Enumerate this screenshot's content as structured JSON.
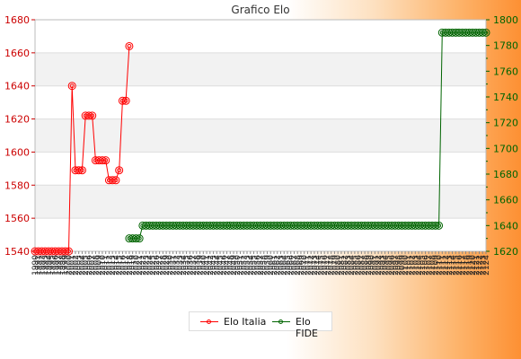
{
  "chart_data": {
    "type": "line",
    "title": "Grafico Elo",
    "y_left_ticks": [
      1540,
      1560,
      1580,
      1600,
      1620,
      1640,
      1660,
      1680
    ],
    "y_right_ticks": [
      1620,
      1640,
      1660,
      1680,
      1700,
      1720,
      1740,
      1760,
      1780,
      1800
    ],
    "ylim_left": [
      1540,
      1680
    ],
    "ylim_right": [
      1620,
      1800
    ],
    "x_count": 135,
    "x_tick_labels": [
      "1990",
      "1991",
      "1992",
      "1993",
      "1994",
      "1995",
      "1996",
      "1997",
      "1998",
      "1999",
      "2000",
      "2001",
      "2002",
      "2003",
      "2004",
      "2005",
      "2006",
      "2007",
      "2008",
      "2009",
      "2010",
      "2011",
      "2012",
      "2013",
      "2014",
      "2015",
      "2016",
      "2017",
      "2018",
      "2019",
      "2020",
      "2021",
      "2022",
      "2023",
      "2024",
      "2025",
      "2026",
      "2027",
      "2028",
      "2029",
      "2030",
      "2031",
      "2032",
      "2033",
      "2034",
      "2035",
      "2036",
      "2037",
      "2038",
      "2039",
      "2040",
      "2041",
      "2042",
      "2043",
      "2044",
      "2045",
      "2046",
      "2047",
      "2048",
      "2049",
      "2050",
      "2051",
      "2052",
      "2053",
      "2054",
      "2055",
      "2056",
      "2057",
      "2058",
      "2059",
      "2060",
      "2061",
      "2062",
      "2063",
      "2064",
      "2065",
      "2066",
      "2067",
      "2068",
      "2069",
      "2070",
      "2071",
      "2072",
      "2073",
      "2074",
      "2075",
      "2076",
      "2077",
      "2078",
      "2079",
      "2080",
      "2081",
      "2082",
      "2083",
      "2084",
      "2085",
      "2086",
      "2087",
      "2088",
      "2089",
      "2090",
      "2091",
      "2092",
      "2093",
      "2094",
      "2095",
      "2096",
      "2097",
      "2098",
      "2099",
      "2100",
      "2101",
      "2102",
      "2103",
      "2104",
      "2105",
      "2106",
      "2107",
      "2108",
      "2109",
      "2110",
      "2111",
      "2112",
      "2113",
      "2114",
      "2115",
      "2116",
      "2117",
      "2118",
      "2119",
      "2120",
      "2121",
      "2122",
      "2123",
      "2124"
    ],
    "grid": true,
    "legend_position": "bottom",
    "series": [
      {
        "name": "Elo Italia",
        "axis": "left",
        "color": "#ff0000",
        "points": [
          [
            0,
            1540
          ],
          [
            1,
            1540
          ],
          [
            2,
            1540
          ],
          [
            3,
            1540
          ],
          [
            4,
            1540
          ],
          [
            5,
            1540
          ],
          [
            6,
            1540
          ],
          [
            7,
            1540
          ],
          [
            8,
            1540
          ],
          [
            9,
            1540
          ],
          [
            10,
            1540
          ],
          [
            11,
            1640
          ],
          [
            12,
            1589
          ],
          [
            13,
            1589
          ],
          [
            14,
            1589
          ],
          [
            15,
            1622
          ],
          [
            16,
            1622
          ],
          [
            17,
            1622
          ],
          [
            18,
            1595
          ],
          [
            19,
            1595
          ],
          [
            20,
            1595
          ],
          [
            21,
            1595
          ],
          [
            22,
            1583
          ],
          [
            23,
            1583
          ],
          [
            24,
            1583
          ],
          [
            25,
            1589
          ],
          [
            26,
            1631
          ],
          [
            27,
            1631
          ],
          [
            28,
            1664
          ]
        ]
      },
      {
        "name": "Elo FIDE",
        "axis": "right",
        "color": "#006400",
        "points": [
          [
            28,
            1630
          ],
          [
            29,
            1630
          ],
          [
            30,
            1630
          ],
          [
            31,
            1630
          ],
          [
            32,
            1640
          ],
          [
            33,
            1640
          ],
          [
            34,
            1640
          ],
          [
            35,
            1640
          ],
          [
            36,
            1640
          ],
          [
            37,
            1640
          ],
          [
            38,
            1640
          ],
          [
            39,
            1640
          ],
          [
            40,
            1640
          ],
          [
            41,
            1640
          ],
          [
            42,
            1640
          ],
          [
            43,
            1640
          ],
          [
            44,
            1640
          ],
          [
            45,
            1640
          ],
          [
            46,
            1640
          ],
          [
            47,
            1640
          ],
          [
            48,
            1640
          ],
          [
            49,
            1640
          ],
          [
            50,
            1640
          ],
          [
            51,
            1640
          ],
          [
            52,
            1640
          ],
          [
            53,
            1640
          ],
          [
            54,
            1640
          ],
          [
            55,
            1640
          ],
          [
            56,
            1640
          ],
          [
            57,
            1640
          ],
          [
            58,
            1640
          ],
          [
            59,
            1640
          ],
          [
            60,
            1640
          ],
          [
            61,
            1640
          ],
          [
            62,
            1640
          ],
          [
            63,
            1640
          ],
          [
            64,
            1640
          ],
          [
            65,
            1640
          ],
          [
            66,
            1640
          ],
          [
            67,
            1640
          ],
          [
            68,
            1640
          ],
          [
            69,
            1640
          ],
          [
            70,
            1640
          ],
          [
            71,
            1640
          ],
          [
            72,
            1640
          ],
          [
            73,
            1640
          ],
          [
            74,
            1640
          ],
          [
            75,
            1640
          ],
          [
            76,
            1640
          ],
          [
            77,
            1640
          ],
          [
            78,
            1640
          ],
          [
            79,
            1640
          ],
          [
            80,
            1640
          ],
          [
            81,
            1640
          ],
          [
            82,
            1640
          ],
          [
            83,
            1640
          ],
          [
            84,
            1640
          ],
          [
            85,
            1640
          ],
          [
            86,
            1640
          ],
          [
            87,
            1640
          ],
          [
            88,
            1640
          ],
          [
            89,
            1640
          ],
          [
            90,
            1640
          ],
          [
            91,
            1640
          ],
          [
            92,
            1640
          ],
          [
            93,
            1640
          ],
          [
            94,
            1640
          ],
          [
            95,
            1640
          ],
          [
            96,
            1640
          ],
          [
            97,
            1640
          ],
          [
            98,
            1640
          ],
          [
            99,
            1640
          ],
          [
            100,
            1640
          ],
          [
            101,
            1640
          ],
          [
            102,
            1640
          ],
          [
            103,
            1640
          ],
          [
            104,
            1640
          ],
          [
            105,
            1640
          ],
          [
            106,
            1640
          ],
          [
            107,
            1640
          ],
          [
            108,
            1640
          ],
          [
            109,
            1640
          ],
          [
            110,
            1640
          ],
          [
            111,
            1640
          ],
          [
            112,
            1640
          ],
          [
            113,
            1640
          ],
          [
            114,
            1640
          ],
          [
            115,
            1640
          ],
          [
            116,
            1640
          ],
          [
            117,
            1640
          ],
          [
            118,
            1640
          ],
          [
            119,
            1640
          ],
          [
            120,
            1640
          ],
          [
            121,
            1790
          ],
          [
            122,
            1790
          ],
          [
            123,
            1790
          ],
          [
            124,
            1790
          ],
          [
            125,
            1790
          ],
          [
            126,
            1790
          ],
          [
            127,
            1790
          ],
          [
            128,
            1790
          ],
          [
            129,
            1790
          ],
          [
            130,
            1790
          ],
          [
            131,
            1790
          ],
          [
            132,
            1790
          ],
          [
            133,
            1790
          ],
          [
            134,
            1790
          ]
        ]
      }
    ]
  }
}
